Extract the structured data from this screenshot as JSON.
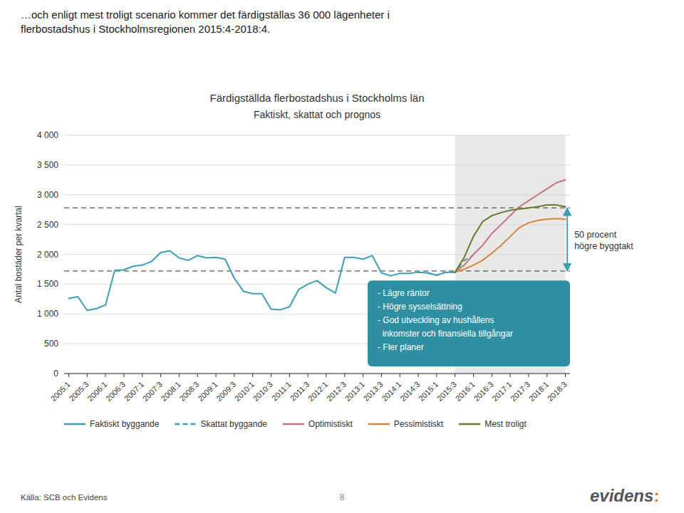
{
  "chart_data": {
    "type": "line",
    "header": "…och enligt mest troligt scenario kommer det färdigställas 36 000 lägenheter i\nflerbostadshus i Stockholmsregionen 2015:4-2018:4.",
    "title": "Färdigställda flerbostadshus i Stockholms län",
    "subtitle": "Faktiskt, skattat och prognos",
    "y_label": "Antal bostäder per kvartal",
    "source": "Källa: SCB och Evidens",
    "page_number": "8",
    "logo": "evidens:",
    "annotation": "- Lägre räntor\n- Högre sysselsättning\n- God utveckling av hushållens\n  inkomster och finansiella tillgångar\n- Fler planer",
    "arrow_label": "50 procent\nhögre byggtakt",
    "arrow_x": 54.2,
    "hlines": [
      1720,
      2780
    ],
    "shaded_x": [
      42,
      54
    ],
    "xlim": [
      -0.5,
      54.5
    ],
    "xticks": [
      {
        "value": 0,
        "label": "2005:1"
      },
      {
        "value": 2,
        "label": "2005:3"
      },
      {
        "value": 4,
        "label": "2006:1"
      },
      {
        "value": 6,
        "label": "2006:3"
      },
      {
        "value": 8,
        "label": "2007:1"
      },
      {
        "value": 10,
        "label": "2007:3"
      },
      {
        "value": 12,
        "label": "2008:1"
      },
      {
        "value": 14,
        "label": "2008:3"
      },
      {
        "value": 16,
        "label": "2009:1"
      },
      {
        "value": 18,
        "label": "2009:3"
      },
      {
        "value": 20,
        "label": "2010:1"
      },
      {
        "value": 22,
        "label": "2010:3"
      },
      {
        "value": 24,
        "label": "2011:1"
      },
      {
        "value": 26,
        "label": "2011:3"
      },
      {
        "value": 28,
        "label": "2012:1"
      },
      {
        "value": 30,
        "label": "2012:3"
      },
      {
        "value": 32,
        "label": "2013:1"
      },
      {
        "value": 34,
        "label": "2013:3"
      },
      {
        "value": 36,
        "label": "2014:1"
      },
      {
        "value": 38,
        "label": "2014:3"
      },
      {
        "value": 40,
        "label": "2015:1"
      },
      {
        "value": 42,
        "label": "2015:3"
      },
      {
        "value": 44,
        "label": "2016:1"
      },
      {
        "value": 46,
        "label": "2016:3"
      },
      {
        "value": 48,
        "label": "2017:1"
      },
      {
        "value": 50,
        "label": "2017:3"
      },
      {
        "value": 52,
        "label": "2018:1"
      },
      {
        "value": 54,
        "label": "2018:3"
      }
    ],
    "ylim": [
      0,
      4000
    ],
    "yticks": [
      0,
      500,
      {
        "value": 1000,
        "label": "1 000"
      },
      {
        "value": 1500,
        "label": "1 500"
      },
      {
        "value": 2000,
        "label": "2 000"
      },
      {
        "value": 2500,
        "label": "2 500"
      },
      {
        "value": 3000,
        "label": "3 000"
      },
      {
        "value": 3500,
        "label": "3 500"
      },
      {
        "value": 4000,
        "label": "4 000"
      }
    ],
    "grid": "y",
    "legend": "bottom",
    "series": [
      {
        "name": "Faktiskt byggande",
        "color": "#3a9eb5",
        "line_style": "solid",
        "x": [
          0,
          1,
          2,
          3,
          4,
          5,
          6,
          7,
          8,
          9,
          10,
          11,
          12,
          13,
          14,
          15,
          16,
          17,
          18,
          19,
          20,
          21,
          22,
          23,
          24,
          25,
          26,
          27,
          28,
          29,
          30,
          31,
          32,
          33,
          34,
          35,
          36,
          37,
          38,
          39,
          40,
          41,
          42
        ],
        "values": [
          1260,
          1290,
          1060,
          1090,
          1150,
          1730,
          1740,
          1800,
          1820,
          1880,
          2030,
          2060,
          1940,
          1900,
          1980,
          1940,
          1950,
          1920,
          1600,
          1380,
          1340,
          1340,
          1080,
          1070,
          1120,
          1410,
          1500,
          1560,
          1440,
          1350,
          1950,
          1950,
          1920,
          1980,
          1690,
          1640,
          1680,
          1680,
          1700,
          1690,
          1650,
          1700,
          1700
        ]
      },
      {
        "name": "Skattat byggande",
        "color": "#3a9eb5",
        "line_style": "dashed",
        "x": [
          38,
          39,
          40,
          41,
          42,
          43,
          44
        ],
        "values": [
          1700,
          1690,
          1650,
          1700,
          1700,
          1900,
          1980
        ]
      },
      {
        "name": "Optimistiskt",
        "color": "#c8737a",
        "line_style": "solid",
        "x": [
          42,
          43,
          44,
          45,
          46,
          47,
          48,
          49,
          50,
          51,
          52,
          53,
          54
        ],
        "values": [
          1700,
          1820,
          2000,
          2150,
          2350,
          2500,
          2650,
          2800,
          2900,
          3000,
          3100,
          3200,
          3250
        ]
      },
      {
        "name": "Pessimistiskt",
        "color": "#d4873a",
        "line_style": "solid",
        "x": [
          42,
          43,
          44,
          45,
          46,
          47,
          48,
          49,
          50,
          51,
          52,
          53,
          54
        ],
        "values": [
          1700,
          1750,
          1820,
          1900,
          2020,
          2150,
          2300,
          2450,
          2530,
          2570,
          2590,
          2600,
          2590
        ]
      },
      {
        "name": "Mest troligt",
        "color": "#6b7a28",
        "line_style": "solid",
        "x": [
          42,
          43,
          44,
          45,
          46,
          47,
          48,
          49,
          50,
          51,
          52,
          53,
          54
        ],
        "values": [
          1700,
          1950,
          2300,
          2550,
          2650,
          2700,
          2740,
          2760,
          2780,
          2800,
          2830,
          2830,
          2800
        ]
      }
    ]
  }
}
